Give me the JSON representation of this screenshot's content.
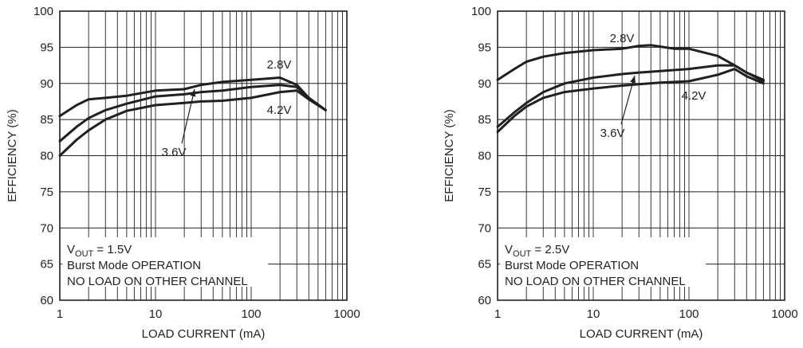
{
  "chart_data": [
    {
      "type": "line",
      "xlabel": "LOAD CURRENT (mA)",
      "ylabel": "EFFICIENCY (%)",
      "xscale": "log",
      "xlim": [
        1,
        1000
      ],
      "ylim": [
        60,
        100
      ],
      "grid": true,
      "x_ticks": [
        "1",
        "10",
        "100",
        "1000"
      ],
      "y_ticks": [
        "60",
        "65",
        "70",
        "75",
        "80",
        "85",
        "90",
        "95",
        "100"
      ],
      "annotation": {
        "vout_prefix": "V",
        "vout_sub": "OUT",
        "vout_value": " = 1.5V",
        "line2": "Burst Mode OPERATION",
        "line3": "NO LOAD ON OTHER CHANNEL"
      },
      "series": [
        {
          "name": "2.8V",
          "x": [
            1,
            1.5,
            2,
            3,
            5,
            10,
            20,
            30,
            50,
            100,
            200,
            300,
            400,
            600
          ],
          "y": [
            85.5,
            87.0,
            87.8,
            88.0,
            88.3,
            89.0,
            89.2,
            89.8,
            90.2,
            90.5,
            90.8,
            89.8,
            88.0,
            86.3
          ]
        },
        {
          "name": "3.6V",
          "x": [
            1,
            1.5,
            2,
            3,
            5,
            10,
            20,
            30,
            50,
            100,
            200,
            300,
            400,
            600
          ],
          "y": [
            82.0,
            84.0,
            85.2,
            86.3,
            87.2,
            88.2,
            88.5,
            88.8,
            89.0,
            89.5,
            89.8,
            89.5,
            88.0,
            86.3
          ]
        },
        {
          "name": "4.2V",
          "x": [
            1,
            1.5,
            2,
            3,
            5,
            10,
            20,
            30,
            50,
            100,
            200,
            300,
            400,
            600
          ],
          "y": [
            80.0,
            82.2,
            83.5,
            85.0,
            86.2,
            87.0,
            87.3,
            87.5,
            87.6,
            88.0,
            88.8,
            89.0,
            87.8,
            86.3
          ]
        }
      ],
      "curve_labels": [
        "2.8V",
        "3.6V",
        "4.2V"
      ]
    },
    {
      "type": "line",
      "xlabel": "LOAD CURRENT (mA)",
      "ylabel": "EFFICIENCY (%)",
      "xscale": "log",
      "xlim": [
        1,
        1000
      ],
      "ylim": [
        60,
        100
      ],
      "grid": true,
      "x_ticks": [
        "1",
        "10",
        "100",
        "1000"
      ],
      "y_ticks": [
        "60",
        "65",
        "70",
        "75",
        "80",
        "85",
        "90",
        "95",
        "100"
      ],
      "annotation": {
        "vout_prefix": "V",
        "vout_sub": "OUT",
        "vout_value": " = 2.5V",
        "line2": "Burst Mode OPERATION",
        "line3": "NO LOAD ON OTHER CHANNEL"
      },
      "series": [
        {
          "name": "2.8V",
          "x": [
            1,
            1.5,
            2,
            3,
            5,
            10,
            20,
            30,
            40,
            50,
            70,
            100,
            200,
            300,
            400,
            600
          ],
          "y": [
            90.5,
            92.0,
            93.0,
            93.7,
            94.2,
            94.6,
            94.8,
            95.2,
            95.3,
            95.1,
            94.8,
            94.8,
            93.8,
            92.5,
            91.5,
            90.5
          ]
        },
        {
          "name": "3.6V",
          "x": [
            1,
            1.5,
            2,
            3,
            5,
            10,
            20,
            30,
            50,
            100,
            200,
            300,
            400,
            600
          ],
          "y": [
            84.0,
            86.0,
            87.3,
            88.8,
            90.0,
            90.8,
            91.3,
            91.5,
            91.7,
            92.0,
            92.5,
            92.5,
            91.5,
            90.3
          ]
        },
        {
          "name": "4.2V",
          "x": [
            1,
            1.5,
            2,
            3,
            5,
            10,
            20,
            30,
            50,
            100,
            200,
            300,
            400,
            600
          ],
          "y": [
            83.3,
            85.5,
            86.8,
            88.0,
            88.8,
            89.3,
            89.7,
            89.9,
            90.1,
            90.3,
            91.2,
            92.0,
            91.0,
            90.0
          ]
        }
      ],
      "curve_labels": [
        "2.8V",
        "3.6V",
        "4.2V"
      ]
    }
  ]
}
